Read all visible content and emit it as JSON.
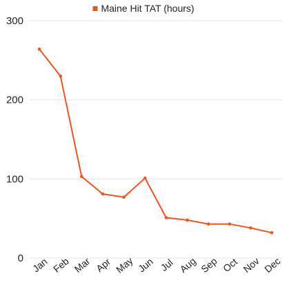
{
  "chart_data": {
    "type": "line",
    "title": "",
    "xlabel": "",
    "ylabel": "",
    "categories": [
      "Jan",
      "Feb",
      "Mar",
      "Apr",
      "May",
      "Jun",
      "Jul",
      "Aug",
      "Sep",
      "Oct",
      "Nov",
      "Dec"
    ],
    "series": [
      {
        "name": "Maine Hit TAT (hours)",
        "color": "#f4511e",
        "values": [
          264,
          230,
          103,
          81,
          77,
          101,
          51,
          48,
          43,
          43,
          38,
          32
        ]
      }
    ],
    "ylim": [
      0,
      300
    ],
    "yticks": [
      0,
      100,
      200,
      300
    ],
    "grid": true,
    "legend": "top-center",
    "marker": "circle"
  }
}
